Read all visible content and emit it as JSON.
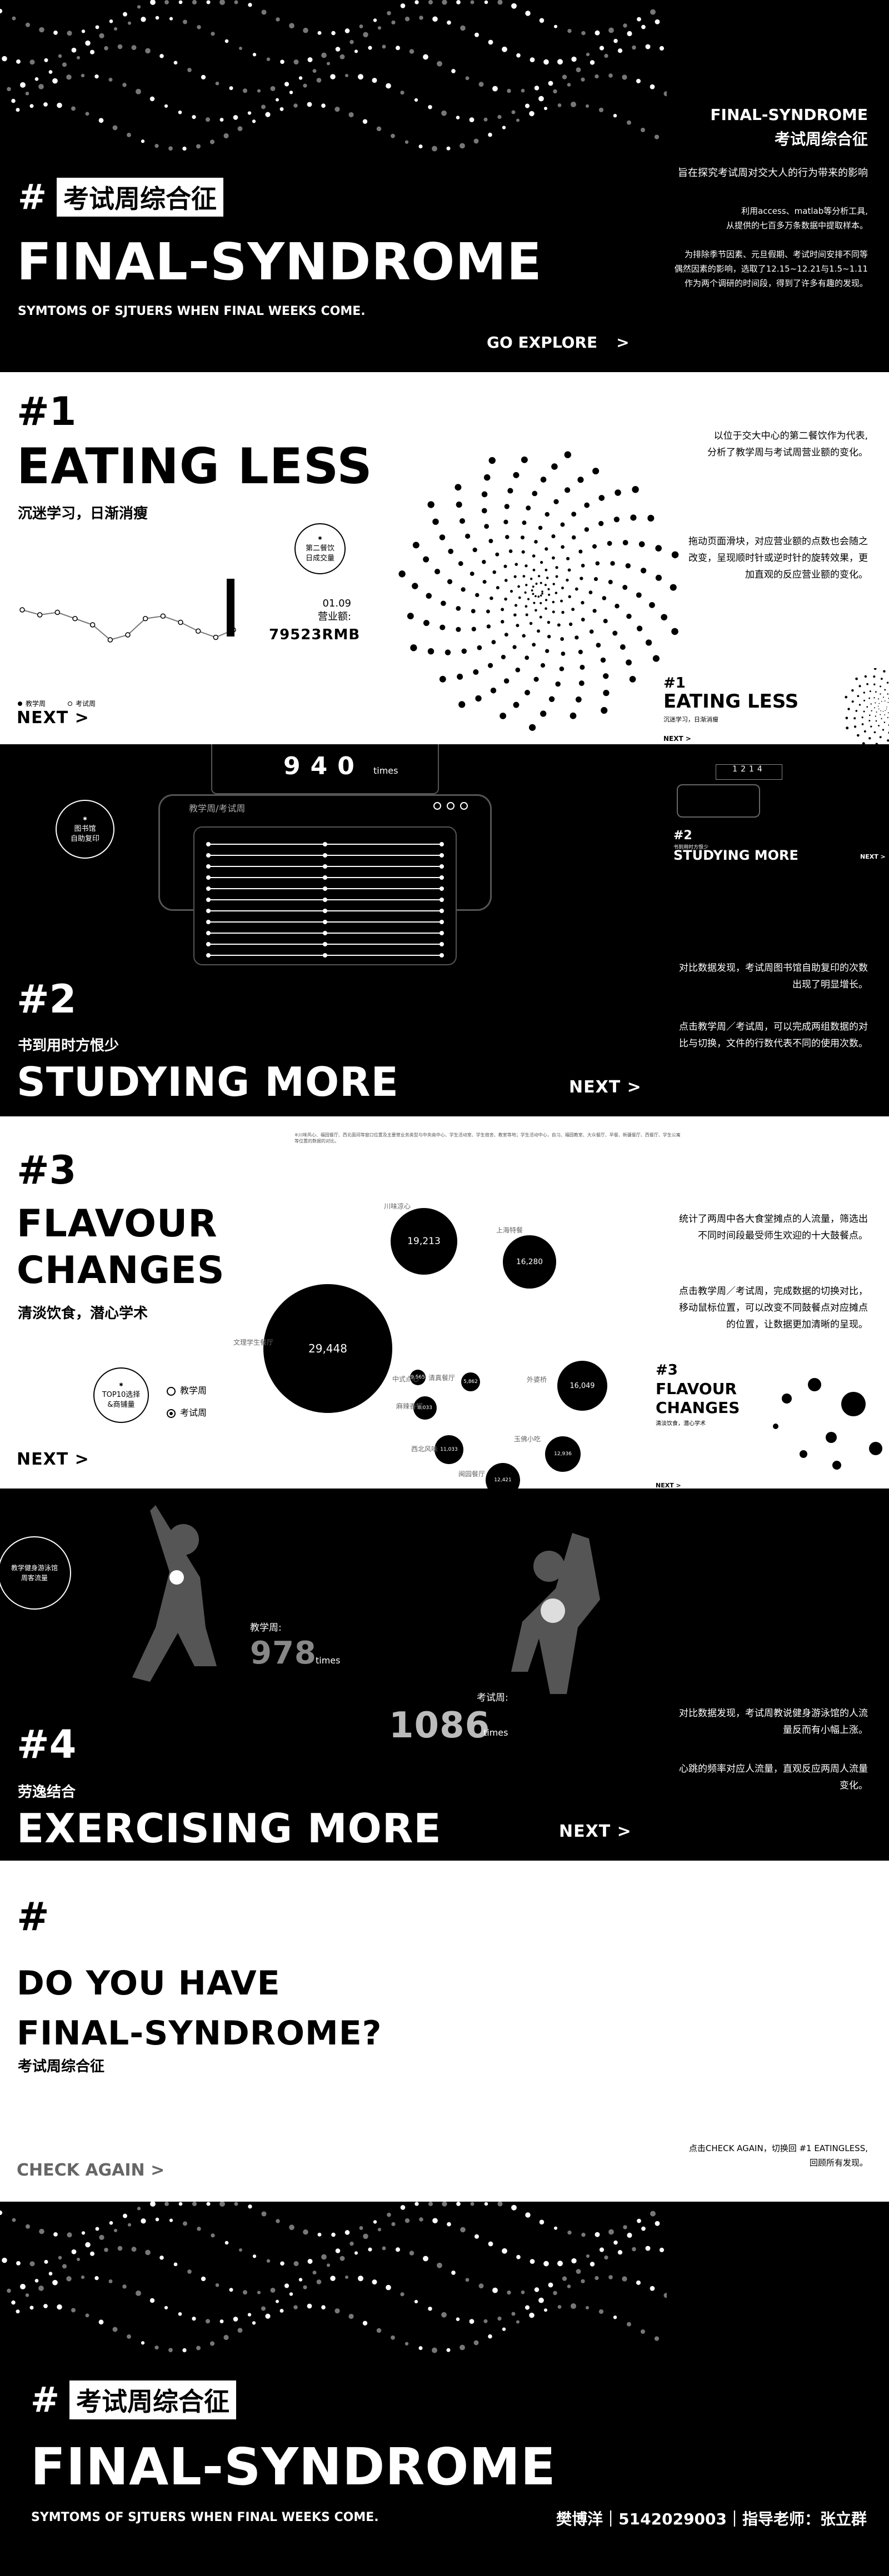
{
  "hero": {
    "hash": "#",
    "tag": "考试周综合征",
    "title": "FINAL-SYNDROME",
    "subtitle": "SYMTOMS OF SJTUERS WHEN FINAL WEEKS COME.",
    "cta": "GO EXPLORE",
    "cta_arrow": ">",
    "right_title_en": "FINAL-SYNDROME",
    "right_title_cn": "考试周综合征",
    "right_intro": "旨在探究考试周对交大人的行为带来的影响",
    "right_para1_l1": "利用access、matlab等分析工具,",
    "right_para1_l2": "从提供的七百多万条数据中提取样本。",
    "right_para2_l1": "为排除季节因素、元旦假期、考试时间安排不同等",
    "right_para2_l2": "偶然因素的影响，选取了12.15~12.21与1.5~1.11",
    "right_para2_l3": "作为两个调研的时间段，得到了许多有趣的发现。"
  },
  "s1": {
    "num": "#1",
    "title": "EATING LESS",
    "subtitle": "沉迷学习，日渐消瘦",
    "badge_l1": "第二餐饮",
    "badge_l2": "日成交量",
    "date": "01.09",
    "rev_label": "营业额:",
    "rev_value": "79523RMB",
    "legend_teach": "教学周",
    "legend_exam": "考试周",
    "next": "NEXT >",
    "desc1_l1": "以位于交大中心的第二餐饮作为代表,",
    "desc1_l2": "分析了教学周与考试周营业额的变化。",
    "desc2_l1": "拖动页面滑块，对应营业额的点数也会随之",
    "desc2_l2": "改变，呈现顺时针或逆时针的旋转效果，更",
    "desc2_l3": "加直观的反应营业额的变化。",
    "thumb_num": "#1",
    "thumb_title": "EATING LESS",
    "thumb_sub": "沉迷学习，日渐消瘦",
    "thumb_next": "NEXT >",
    "chart_data": {
      "type": "line",
      "series": [
        {
          "values": [
            62,
            58,
            60,
            55,
            50,
            38,
            42,
            55,
            57,
            52,
            45,
            40,
            46
          ]
        }
      ]
    }
  },
  "s2": {
    "count": "940",
    "count_unit": "times",
    "tabs": "教学周/考试周",
    "badge_l1": "图书馆",
    "badge_l2": "自助复印",
    "num": "#2",
    "subtitle": "书到用时方恨少",
    "title": "STUDYING MORE",
    "next": "NEXT >",
    "desc1_l1": "对比数据发现，考试周图书馆自助复印的次数",
    "desc1_l2": "出现了明显增长。",
    "desc2_l1": "点击教学周／考试周，可以完成两组数据的对",
    "desc2_l2": "比与切换，文件的行数代表不同的使用次数。",
    "thumb_count": "1214",
    "thumb_num": "#2",
    "thumb_sub": "书到用时方恨少",
    "thumb_title": "STUDYING MORE",
    "thumb_next": "NEXT >"
  },
  "s3": {
    "top_note": "※川味风心、福园餐厅、西北面间等窗口位置及主要营业务类型与中央商中心、学生活动室、学生宿舍、教室等地；学生活动中心，自习、福园教室、大众餐厅、早餐、新疆餐厅、西餐厅、学生公寓等位置的数据的对比。",
    "num": "#3",
    "title_l1": "FLAVOUR",
    "title_l2": "CHANGES",
    "subtitle": "清淡饮食，潜心学术",
    "badge_l1": "TOP10选择",
    "badge_l2": "&商铺量",
    "radio_teach": "教学周",
    "radio_exam": "考试周",
    "next": "NEXT >",
    "desc1_l1": "统计了两周中各大食堂摊点的人流量，筛选出",
    "desc1_l2": "不同时间段最受师生欢迎的十大鼓餐点。",
    "desc2_l1": "点击教学周／考试周，完成数据的切换对比，",
    "desc2_l2": "移动鼠标位置，可以改变不同鼓餐点对应摊点",
    "desc2_l3": "的位置，让数据更加清晰的呈现。",
    "thumb_num": "#3",
    "thumb_title_l1": "FLAVOUR",
    "thumb_title_l2": "CHANGES",
    "thumb_sub": "清淡饮食，潜心学术",
    "thumb_next": "NEXT >",
    "bubbles": [
      {
        "label": "文理学生餐厅",
        "value": "29,448"
      },
      {
        "label": "川味凉心",
        "value": "19,213"
      },
      {
        "label": "上海特餐",
        "value": "16,280"
      },
      {
        "label": "外婆桥",
        "value": "16,049"
      },
      {
        "label": "玉佛小吃",
        "value": "12,936"
      },
      {
        "label": "闽园餐厅",
        "value": "12,421"
      },
      {
        "label": "西北风味",
        "value": "11,033"
      },
      {
        "label": "麻辣香锅",
        "value": "8,033"
      },
      {
        "label": "中式点心",
        "value": "9,565"
      },
      {
        "label": "清真餐厅",
        "value": "5,862"
      }
    ]
  },
  "s4": {
    "badge_l1": "教学健身游泳馆",
    "badge_l2": "周客流量",
    "teach_label": "教学周:",
    "teach_value": "978",
    "teach_unit": "times",
    "exam_label": "考试周:",
    "exam_value": "1086",
    "exam_unit": "times",
    "num": "#4",
    "subtitle": "劳逸结合",
    "title": "EXERCISING MORE",
    "next": "NEXT >",
    "desc1_l1": "对比数据发现，考试周教说健身游泳馆的人流",
    "desc1_l2": "量反而有小幅上涨。",
    "desc2_l1": "心跳的频率对应人流量，直观反应两周人流量",
    "desc2_l2": "变化。"
  },
  "s5": {
    "hash": "#",
    "title_l1": "DO YOU HAVE",
    "title_l2": "FINAL-SYNDROME?",
    "subtitle": "考试周综合征",
    "cta": "CHECK AGAIN >",
    "desc_l1": "点击CHECK AGAIN，切换回 #1 EATINGLESS,",
    "desc_l2": "回顾所有发现。"
  },
  "footer": {
    "hash": "#",
    "tag": "考试周综合征",
    "title": "FINAL-SYNDROME",
    "subtitle": "SYMTOMS OF SJTUERS WHEN FINAL WEEKS COME.",
    "credits": "樊博洋｜5142029003｜指导老师：张立群"
  }
}
